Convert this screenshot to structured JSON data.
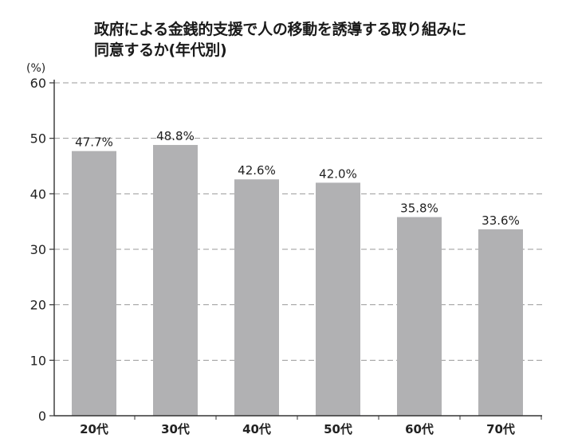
{
  "chart_data": {
    "type": "bar",
    "title_lines": [
      "政府による金銭的支援で人の移動を誘導する取り組みに",
      "同意するか(年代別)"
    ],
    "unit_label": "(%)",
    "categories": [
      "20代",
      "30代",
      "40代",
      "50代",
      "60代",
      "70代"
    ],
    "values": [
      47.7,
      48.8,
      42.6,
      42.0,
      35.8,
      33.6
    ],
    "value_labels": [
      "47.7%",
      "48.8%",
      "42.6%",
      "42.0%",
      "35.8%",
      "33.6%"
    ],
    "ylim": [
      0,
      60
    ],
    "yticks": [
      0,
      10,
      20,
      30,
      40,
      50,
      60
    ],
    "grid": true,
    "bar_color": "#b1b1b3"
  }
}
